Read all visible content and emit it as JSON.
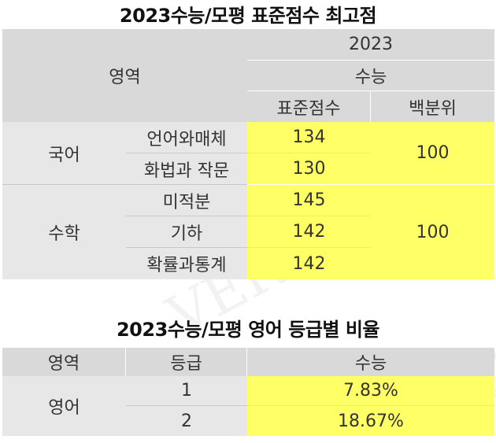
{
  "table1": {
    "title": "2023수능/모평 표준점수 최고점",
    "header": {
      "area": "영역",
      "year": "2023",
      "exam": "수능",
      "std_score": "표준점수",
      "percentile": "백분위"
    },
    "korean": {
      "name": "국어",
      "rows": [
        {
          "label": "언어와매체",
          "score": "134"
        },
        {
          "label": "화법과 작문",
          "score": "130"
        }
      ],
      "percentile": "100"
    },
    "math": {
      "name": "수학",
      "rows": [
        {
          "label": "미적분",
          "score": "145"
        },
        {
          "label": "기하",
          "score": "142"
        },
        {
          "label": "확률과통계",
          "score": "142"
        }
      ],
      "percentile": "100"
    }
  },
  "table2": {
    "title": "2023수능/모평 영어 등급별 비율",
    "header": {
      "area": "영역",
      "grade": "등급",
      "exam": "수능"
    },
    "english": {
      "name": "영어",
      "rows": [
        {
          "grade": "1",
          "ratio": "7.83%"
        },
        {
          "grade": "2",
          "ratio": "18.67%"
        }
      ]
    }
  },
  "watermark": "VERITAS"
}
